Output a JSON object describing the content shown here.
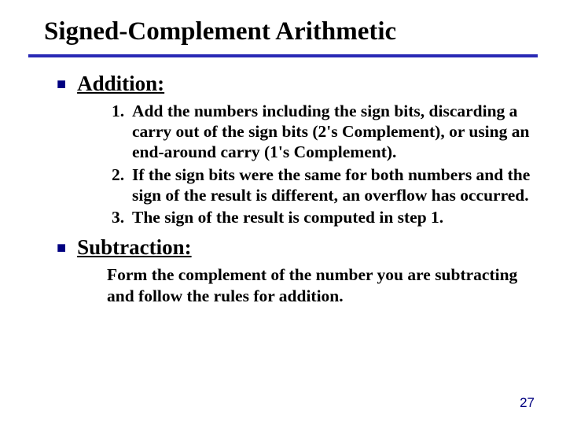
{
  "title": "Signed-Complement Arithmetic",
  "sections": [
    {
      "heading": "Addition:",
      "items": [
        {
          "num": "1.",
          "text": "Add the numbers including the sign bits,  discarding a carry out of the sign bits (2's Complement), or using an end-around carry (1's Complement)."
        },
        {
          "num": "2.",
          "text": "If the sign bits were the same for both numbers and the sign of the result is different, an overflow has occurred."
        },
        {
          "num": "3.",
          "text": "The sign of the result is computed in step 1."
        }
      ]
    },
    {
      "heading": "Subtraction:",
      "paragraph": "Form the complement of the number you are subtracting and follow the rules for addition."
    }
  ],
  "page_number": "27",
  "colors": {
    "rule": "#2929b5",
    "bullet": "#000080",
    "pagenum": "#000080",
    "text": "#000000",
    "background": "#ffffff"
  }
}
